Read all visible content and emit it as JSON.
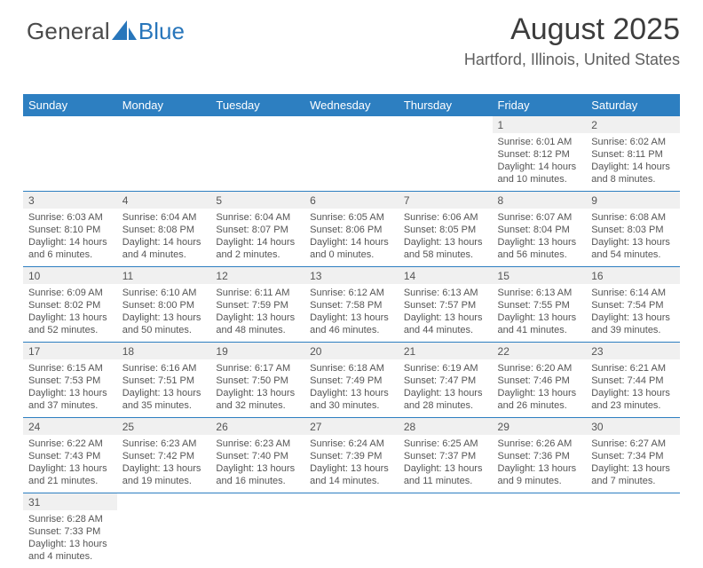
{
  "logo": {
    "text_general": "General",
    "text_blue": "Blue",
    "sail_color": "#2876bb"
  },
  "header": {
    "month_year": "August 2025",
    "location": "Hartford, Illinois, United States"
  },
  "calendar": {
    "header_bg": "#2d7fc1",
    "header_fg": "#ffffff",
    "rule_color": "#2d7fc1",
    "daynum_bg": "#f0f0f0",
    "day_labels": [
      "Sunday",
      "Monday",
      "Tuesday",
      "Wednesday",
      "Thursday",
      "Friday",
      "Saturday"
    ],
    "weeks": [
      [
        null,
        null,
        null,
        null,
        null,
        {
          "n": "1",
          "sr": "Sunrise: 6:01 AM",
          "ss": "Sunset: 8:12 PM",
          "d1": "Daylight: 14 hours",
          "d2": "and 10 minutes."
        },
        {
          "n": "2",
          "sr": "Sunrise: 6:02 AM",
          "ss": "Sunset: 8:11 PM",
          "d1": "Daylight: 14 hours",
          "d2": "and 8 minutes."
        }
      ],
      [
        {
          "n": "3",
          "sr": "Sunrise: 6:03 AM",
          "ss": "Sunset: 8:10 PM",
          "d1": "Daylight: 14 hours",
          "d2": "and 6 minutes."
        },
        {
          "n": "4",
          "sr": "Sunrise: 6:04 AM",
          "ss": "Sunset: 8:08 PM",
          "d1": "Daylight: 14 hours",
          "d2": "and 4 minutes."
        },
        {
          "n": "5",
          "sr": "Sunrise: 6:04 AM",
          "ss": "Sunset: 8:07 PM",
          "d1": "Daylight: 14 hours",
          "d2": "and 2 minutes."
        },
        {
          "n": "6",
          "sr": "Sunrise: 6:05 AM",
          "ss": "Sunset: 8:06 PM",
          "d1": "Daylight: 14 hours",
          "d2": "and 0 minutes."
        },
        {
          "n": "7",
          "sr": "Sunrise: 6:06 AM",
          "ss": "Sunset: 8:05 PM",
          "d1": "Daylight: 13 hours",
          "d2": "and 58 minutes."
        },
        {
          "n": "8",
          "sr": "Sunrise: 6:07 AM",
          "ss": "Sunset: 8:04 PM",
          "d1": "Daylight: 13 hours",
          "d2": "and 56 minutes."
        },
        {
          "n": "9",
          "sr": "Sunrise: 6:08 AM",
          "ss": "Sunset: 8:03 PM",
          "d1": "Daylight: 13 hours",
          "d2": "and 54 minutes."
        }
      ],
      [
        {
          "n": "10",
          "sr": "Sunrise: 6:09 AM",
          "ss": "Sunset: 8:02 PM",
          "d1": "Daylight: 13 hours",
          "d2": "and 52 minutes."
        },
        {
          "n": "11",
          "sr": "Sunrise: 6:10 AM",
          "ss": "Sunset: 8:00 PM",
          "d1": "Daylight: 13 hours",
          "d2": "and 50 minutes."
        },
        {
          "n": "12",
          "sr": "Sunrise: 6:11 AM",
          "ss": "Sunset: 7:59 PM",
          "d1": "Daylight: 13 hours",
          "d2": "and 48 minutes."
        },
        {
          "n": "13",
          "sr": "Sunrise: 6:12 AM",
          "ss": "Sunset: 7:58 PM",
          "d1": "Daylight: 13 hours",
          "d2": "and 46 minutes."
        },
        {
          "n": "14",
          "sr": "Sunrise: 6:13 AM",
          "ss": "Sunset: 7:57 PM",
          "d1": "Daylight: 13 hours",
          "d2": "and 44 minutes."
        },
        {
          "n": "15",
          "sr": "Sunrise: 6:13 AM",
          "ss": "Sunset: 7:55 PM",
          "d1": "Daylight: 13 hours",
          "d2": "and 41 minutes."
        },
        {
          "n": "16",
          "sr": "Sunrise: 6:14 AM",
          "ss": "Sunset: 7:54 PM",
          "d1": "Daylight: 13 hours",
          "d2": "and 39 minutes."
        }
      ],
      [
        {
          "n": "17",
          "sr": "Sunrise: 6:15 AM",
          "ss": "Sunset: 7:53 PM",
          "d1": "Daylight: 13 hours",
          "d2": "and 37 minutes."
        },
        {
          "n": "18",
          "sr": "Sunrise: 6:16 AM",
          "ss": "Sunset: 7:51 PM",
          "d1": "Daylight: 13 hours",
          "d2": "and 35 minutes."
        },
        {
          "n": "19",
          "sr": "Sunrise: 6:17 AM",
          "ss": "Sunset: 7:50 PM",
          "d1": "Daylight: 13 hours",
          "d2": "and 32 minutes."
        },
        {
          "n": "20",
          "sr": "Sunrise: 6:18 AM",
          "ss": "Sunset: 7:49 PM",
          "d1": "Daylight: 13 hours",
          "d2": "and 30 minutes."
        },
        {
          "n": "21",
          "sr": "Sunrise: 6:19 AM",
          "ss": "Sunset: 7:47 PM",
          "d1": "Daylight: 13 hours",
          "d2": "and 28 minutes."
        },
        {
          "n": "22",
          "sr": "Sunrise: 6:20 AM",
          "ss": "Sunset: 7:46 PM",
          "d1": "Daylight: 13 hours",
          "d2": "and 26 minutes."
        },
        {
          "n": "23",
          "sr": "Sunrise: 6:21 AM",
          "ss": "Sunset: 7:44 PM",
          "d1": "Daylight: 13 hours",
          "d2": "and 23 minutes."
        }
      ],
      [
        {
          "n": "24",
          "sr": "Sunrise: 6:22 AM",
          "ss": "Sunset: 7:43 PM",
          "d1": "Daylight: 13 hours",
          "d2": "and 21 minutes."
        },
        {
          "n": "25",
          "sr": "Sunrise: 6:23 AM",
          "ss": "Sunset: 7:42 PM",
          "d1": "Daylight: 13 hours",
          "d2": "and 19 minutes."
        },
        {
          "n": "26",
          "sr": "Sunrise: 6:23 AM",
          "ss": "Sunset: 7:40 PM",
          "d1": "Daylight: 13 hours",
          "d2": "and 16 minutes."
        },
        {
          "n": "27",
          "sr": "Sunrise: 6:24 AM",
          "ss": "Sunset: 7:39 PM",
          "d1": "Daylight: 13 hours",
          "d2": "and 14 minutes."
        },
        {
          "n": "28",
          "sr": "Sunrise: 6:25 AM",
          "ss": "Sunset: 7:37 PM",
          "d1": "Daylight: 13 hours",
          "d2": "and 11 minutes."
        },
        {
          "n": "29",
          "sr": "Sunrise: 6:26 AM",
          "ss": "Sunset: 7:36 PM",
          "d1": "Daylight: 13 hours",
          "d2": "and 9 minutes."
        },
        {
          "n": "30",
          "sr": "Sunrise: 6:27 AM",
          "ss": "Sunset: 7:34 PM",
          "d1": "Daylight: 13 hours",
          "d2": "and 7 minutes."
        }
      ],
      [
        {
          "n": "31",
          "sr": "Sunrise: 6:28 AM",
          "ss": "Sunset: 7:33 PM",
          "d1": "Daylight: 13 hours",
          "d2": "and 4 minutes."
        },
        null,
        null,
        null,
        null,
        null,
        null
      ]
    ]
  }
}
